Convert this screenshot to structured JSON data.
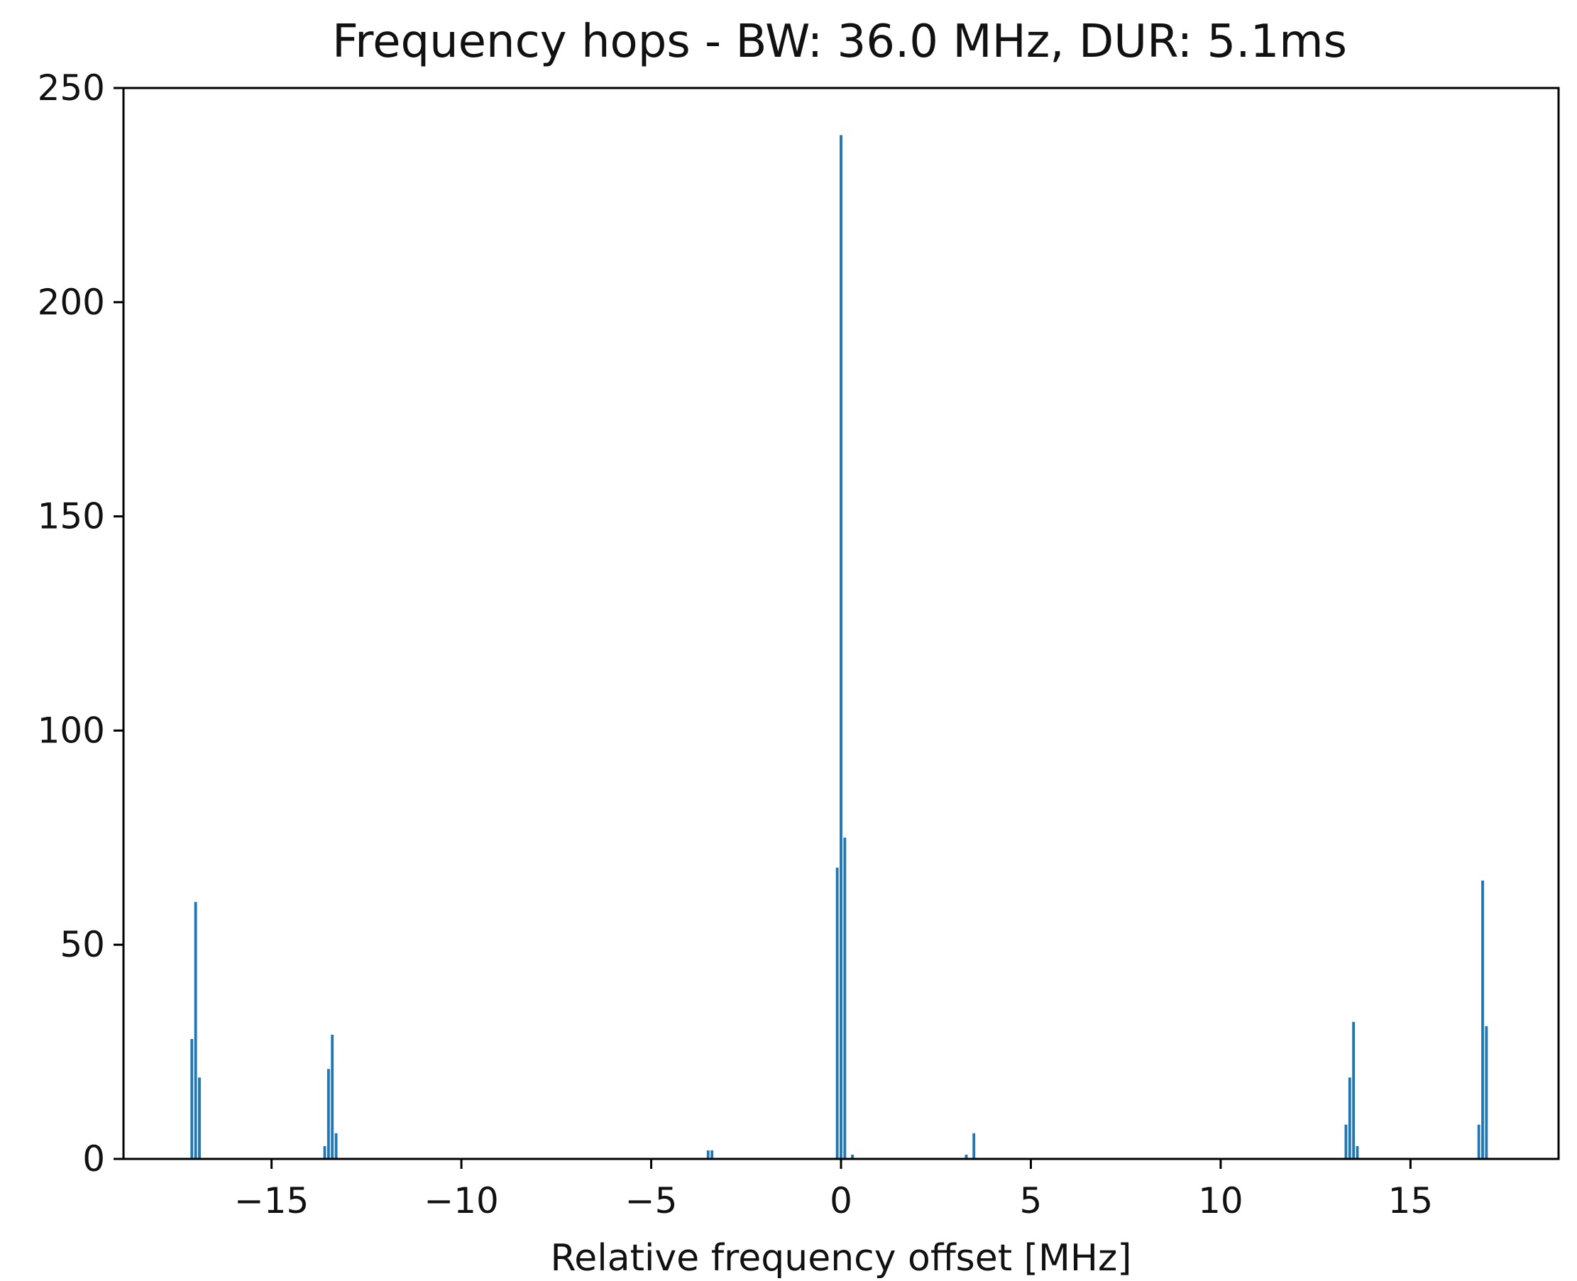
{
  "chart_data": {
    "type": "bar",
    "title": "Frequency hops - BW: 36.0 MHz, DUR: 5.1ms",
    "xlabel": "Relative frequency offset [MHz]",
    "ylabel": "",
    "xlim": [
      -18.9,
      18.9
    ],
    "ylim": [
      0,
      250
    ],
    "xticks": [
      -15,
      -10,
      -5,
      0,
      5,
      10,
      15
    ],
    "yticks": [
      0,
      50,
      100,
      150,
      200,
      250
    ],
    "xtick_labels": [
      "−15",
      "−10",
      "−5",
      "0",
      "5",
      "10",
      "15"
    ],
    "ytick_labels": [
      "0",
      "50",
      "100",
      "150",
      "200",
      "250"
    ],
    "bar_color": "#1f77b4",
    "bin_width": 0.072,
    "bars": [
      {
        "x": -17.1,
        "y": 28
      },
      {
        "x": -17.0,
        "y": 60
      },
      {
        "x": -16.9,
        "y": 19
      },
      {
        "x": -13.6,
        "y": 3
      },
      {
        "x": -13.5,
        "y": 21
      },
      {
        "x": -13.4,
        "y": 29
      },
      {
        "x": -13.3,
        "y": 6
      },
      {
        "x": -3.5,
        "y": 2
      },
      {
        "x": -3.4,
        "y": 2
      },
      {
        "x": -0.1,
        "y": 68
      },
      {
        "x": 0.0,
        "y": 239
      },
      {
        "x": 0.1,
        "y": 75
      },
      {
        "x": 0.3,
        "y": 1
      },
      {
        "x": 3.3,
        "y": 1
      },
      {
        "x": 3.5,
        "y": 6
      },
      {
        "x": 13.3,
        "y": 8
      },
      {
        "x": 13.4,
        "y": 19
      },
      {
        "x": 13.5,
        "y": 32
      },
      {
        "x": 13.6,
        "y": 3
      },
      {
        "x": 16.8,
        "y": 8
      },
      {
        "x": 16.9,
        "y": 65
      },
      {
        "x": 17.0,
        "y": 31
      }
    ]
  }
}
